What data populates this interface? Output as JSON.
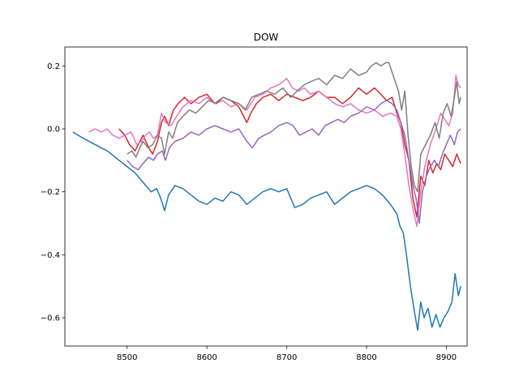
{
  "chart_data": {
    "type": "line",
    "title": "DOW",
    "xlabel": "",
    "ylabel": "",
    "xlim": [
      8422,
      8926
    ],
    "ylim": [
      -0.69,
      0.26
    ],
    "xticks": [
      8500,
      8600,
      8700,
      8800,
      8900
    ],
    "yticks": [
      -0.6,
      -0.4,
      -0.2,
      0.0,
      0.2
    ],
    "ytick_labels": [
      "−0.6",
      "−0.4",
      "−0.2",
      "0.0",
      "0.2"
    ],
    "grid": false,
    "legend": "none",
    "series": [
      {
        "color": "#1f77b4",
        "points": [
          [
            8432,
            -0.01
          ],
          [
            8445,
            -0.03
          ],
          [
            8460,
            -0.05
          ],
          [
            8475,
            -0.07
          ],
          [
            8490,
            -0.1
          ],
          [
            8500,
            -0.12
          ],
          [
            8510,
            -0.14
          ],
          [
            8520,
            -0.17
          ],
          [
            8530,
            -0.2
          ],
          [
            8537,
            -0.19
          ],
          [
            8542,
            -0.22
          ],
          [
            8547,
            -0.26
          ],
          [
            8552,
            -0.21
          ],
          [
            8560,
            -0.18
          ],
          [
            8570,
            -0.19
          ],
          [
            8580,
            -0.21
          ],
          [
            8590,
            -0.23
          ],
          [
            8600,
            -0.24
          ],
          [
            8610,
            -0.22
          ],
          [
            8620,
            -0.23
          ],
          [
            8630,
            -0.2
          ],
          [
            8640,
            -0.21
          ],
          [
            8650,
            -0.24
          ],
          [
            8660,
            -0.22
          ],
          [
            8670,
            -0.2
          ],
          [
            8680,
            -0.19
          ],
          [
            8690,
            -0.2
          ],
          [
            8700,
            -0.19
          ],
          [
            8705,
            -0.22
          ],
          [
            8710,
            -0.25
          ],
          [
            8720,
            -0.24
          ],
          [
            8730,
            -0.22
          ],
          [
            8740,
            -0.21
          ],
          [
            8750,
            -0.2
          ],
          [
            8760,
            -0.24
          ],
          [
            8770,
            -0.22
          ],
          [
            8780,
            -0.2
          ],
          [
            8790,
            -0.19
          ],
          [
            8800,
            -0.18
          ],
          [
            8810,
            -0.19
          ],
          [
            8820,
            -0.21
          ],
          [
            8830,
            -0.24
          ],
          [
            8838,
            -0.27
          ],
          [
            8842,
            -0.31
          ],
          [
            8846,
            -0.33
          ],
          [
            8850,
            -0.4
          ],
          [
            8855,
            -0.5
          ],
          [
            8860,
            -0.58
          ],
          [
            8864,
            -0.64
          ],
          [
            8868,
            -0.55
          ],
          [
            8872,
            -0.6
          ],
          [
            8877,
            -0.57
          ],
          [
            8882,
            -0.63
          ],
          [
            8887,
            -0.59
          ],
          [
            8892,
            -0.63
          ],
          [
            8897,
            -0.6
          ],
          [
            8902,
            -0.58
          ],
          [
            8907,
            -0.55
          ],
          [
            8911,
            -0.46
          ],
          [
            8915,
            -0.53
          ],
          [
            8918,
            -0.5
          ]
        ]
      },
      {
        "color": "#d62728",
        "points": [
          [
            8490,
            0.0
          ],
          [
            8497,
            -0.02
          ],
          [
            8503,
            -0.05
          ],
          [
            8510,
            -0.07
          ],
          [
            8516,
            -0.04
          ],
          [
            8520,
            -0.02
          ],
          [
            8527,
            -0.06
          ],
          [
            8532,
            -0.08
          ],
          [
            8538,
            -0.04
          ],
          [
            8543,
            0.02
          ],
          [
            8547,
            0.04
          ],
          [
            8552,
            0.01
          ],
          [
            8558,
            0.06
          ],
          [
            8564,
            0.08
          ],
          [
            8572,
            0.1
          ],
          [
            8580,
            0.08
          ],
          [
            8590,
            0.1
          ],
          [
            8600,
            0.11
          ],
          [
            8610,
            0.08
          ],
          [
            8620,
            0.1
          ],
          [
            8630,
            0.09
          ],
          [
            8640,
            0.07
          ],
          [
            8650,
            0.02
          ],
          [
            8655,
            0.05
          ],
          [
            8662,
            0.08
          ],
          [
            8670,
            0.1
          ],
          [
            8680,
            0.11
          ],
          [
            8690,
            0.09
          ],
          [
            8700,
            0.11
          ],
          [
            8710,
            0.1
          ],
          [
            8720,
            0.09
          ],
          [
            8730,
            0.1
          ],
          [
            8740,
            0.12
          ],
          [
            8750,
            0.1
          ],
          [
            8760,
            0.1
          ],
          [
            8770,
            0.08
          ],
          [
            8780,
            0.1
          ],
          [
            8790,
            0.13
          ],
          [
            8800,
            0.11
          ],
          [
            8810,
            0.13
          ],
          [
            8818,
            0.11
          ],
          [
            8825,
            0.09
          ],
          [
            8832,
            0.1
          ],
          [
            8838,
            0.05
          ],
          [
            8843,
            0.02
          ],
          [
            8848,
            -0.05
          ],
          [
            8853,
            -0.1
          ],
          [
            8858,
            -0.22
          ],
          [
            8863,
            -0.28
          ],
          [
            8868,
            -0.15
          ],
          [
            8873,
            -0.18
          ],
          [
            8878,
            -0.1
          ],
          [
            8883,
            -0.14
          ],
          [
            8888,
            -0.11
          ],
          [
            8893,
            -0.13
          ],
          [
            8898,
            -0.08
          ],
          [
            8903,
            -0.1
          ],
          [
            8908,
            -0.12
          ],
          [
            8913,
            -0.08
          ],
          [
            8918,
            -0.11
          ]
        ]
      },
      {
        "color": "#e377c2",
        "points": [
          [
            8452,
            -0.01
          ],
          [
            8460,
            0.0
          ],
          [
            8468,
            -0.01
          ],
          [
            8475,
            0.0
          ],
          [
            8482,
            -0.02
          ],
          [
            8490,
            -0.03
          ],
          [
            8497,
            -0.02
          ],
          [
            8505,
            -0.01
          ],
          [
            8512,
            -0.05
          ],
          [
            8518,
            -0.04
          ],
          [
            8523,
            -0.02
          ],
          [
            8528,
            -0.01
          ],
          [
            8533,
            -0.03
          ],
          [
            8538,
            -0.02
          ],
          [
            8543,
            0.05
          ],
          [
            8548,
            0.02
          ],
          [
            8555,
            0.01
          ],
          [
            8562,
            0.04
          ],
          [
            8570,
            0.07
          ],
          [
            8580,
            0.09
          ],
          [
            8590,
            0.08
          ],
          [
            8600,
            0.1
          ],
          [
            8610,
            0.08
          ],
          [
            8620,
            0.09
          ],
          [
            8630,
            0.07
          ],
          [
            8640,
            0.08
          ],
          [
            8650,
            0.06
          ],
          [
            8660,
            0.1
          ],
          [
            8670,
            0.11
          ],
          [
            8680,
            0.13
          ],
          [
            8690,
            0.14
          ],
          [
            8700,
            0.16
          ],
          [
            8707,
            0.13
          ],
          [
            8715,
            0.12
          ],
          [
            8722,
            0.13
          ],
          [
            8730,
            0.11
          ],
          [
            8740,
            0.12
          ],
          [
            8750,
            0.1
          ],
          [
            8760,
            0.08
          ],
          [
            8770,
            0.07
          ],
          [
            8780,
            0.08
          ],
          [
            8790,
            0.06
          ],
          [
            8800,
            0.05
          ],
          [
            8810,
            0.06
          ],
          [
            8820,
            0.04
          ],
          [
            8830,
            0.05
          ],
          [
            8838,
            0.04
          ],
          [
            8843,
            0.0
          ],
          [
            8848,
            -0.08
          ],
          [
            8853,
            -0.18
          ],
          [
            8858,
            -0.25
          ],
          [
            8863,
            -0.31
          ],
          [
            8868,
            -0.2
          ],
          [
            8873,
            -0.12
          ],
          [
            8880,
            -0.05
          ],
          [
            8887,
            0.0
          ],
          [
            8893,
            0.05
          ],
          [
            8898,
            0.03
          ],
          [
            8903,
            0.01
          ],
          [
            8908,
            0.05
          ],
          [
            8912,
            0.17
          ],
          [
            8915,
            0.14
          ],
          [
            8918,
            0.13
          ]
        ]
      },
      {
        "color": "#7f7f7f",
        "points": [
          [
            8500,
            -0.08
          ],
          [
            8506,
            -0.07
          ],
          [
            8511,
            -0.09
          ],
          [
            8516,
            -0.06
          ],
          [
            8520,
            -0.04
          ],
          [
            8526,
            -0.06
          ],
          [
            8532,
            -0.05
          ],
          [
            8538,
            -0.02
          ],
          [
            8543,
            -0.03
          ],
          [
            8547,
            -0.08
          ],
          [
            8552,
            -0.01
          ],
          [
            8557,
            -0.03
          ],
          [
            8563,
            0.02
          ],
          [
            8570,
            0.04
          ],
          [
            8578,
            0.06
          ],
          [
            8586,
            0.05
          ],
          [
            8594,
            0.07
          ],
          [
            8602,
            0.09
          ],
          [
            8612,
            0.08
          ],
          [
            8620,
            0.1
          ],
          [
            8630,
            0.09
          ],
          [
            8640,
            0.08
          ],
          [
            8648,
            0.06
          ],
          [
            8656,
            0.1
          ],
          [
            8665,
            0.11
          ],
          [
            8675,
            0.12
          ],
          [
            8685,
            0.11
          ],
          [
            8695,
            0.13
          ],
          [
            8705,
            0.1
          ],
          [
            8713,
            0.12
          ],
          [
            8722,
            0.14
          ],
          [
            8730,
            0.15
          ],
          [
            8740,
            0.16
          ],
          [
            8750,
            0.14
          ],
          [
            8760,
            0.17
          ],
          [
            8770,
            0.16
          ],
          [
            8780,
            0.19
          ],
          [
            8790,
            0.17
          ],
          [
            8800,
            0.18
          ],
          [
            8806,
            0.2
          ],
          [
            8812,
            0.21
          ],
          [
            8818,
            0.2
          ],
          [
            8824,
            0.21
          ],
          [
            8828,
            0.21
          ],
          [
            8832,
            0.18
          ],
          [
            8836,
            0.15
          ],
          [
            8840,
            0.12
          ],
          [
            8844,
            0.06
          ],
          [
            8848,
            0.12
          ],
          [
            8852,
            -0.02
          ],
          [
            8856,
            -0.12
          ],
          [
            8860,
            -0.18
          ],
          [
            8864,
            -0.2
          ],
          [
            8868,
            -0.08
          ],
          [
            8874,
            -0.05
          ],
          [
            8880,
            -0.02
          ],
          [
            8886,
            0.02
          ],
          [
            8891,
            -0.03
          ],
          [
            8896,
            0.05
          ],
          [
            8901,
            0.08
          ],
          [
            8906,
            0.04
          ],
          [
            8910,
            0.1
          ],
          [
            8913,
            0.15
          ],
          [
            8916,
            0.08
          ],
          [
            8918,
            0.1
          ]
        ]
      },
      {
        "color": "#9467bd",
        "points": [
          [
            8500,
            -0.1
          ],
          [
            8507,
            -0.12
          ],
          [
            8514,
            -0.13
          ],
          [
            8520,
            -0.11
          ],
          [
            8527,
            -0.09
          ],
          [
            8533,
            -0.1
          ],
          [
            8538,
            -0.08
          ],
          [
            8544,
            -0.07
          ],
          [
            8548,
            -0.1
          ],
          [
            8553,
            -0.06
          ],
          [
            8560,
            -0.04
          ],
          [
            8570,
            -0.03
          ],
          [
            8580,
            -0.01
          ],
          [
            8590,
            -0.02
          ],
          [
            8600,
            0.0
          ],
          [
            8610,
            0.01
          ],
          [
            8620,
            0.0
          ],
          [
            8630,
            -0.01
          ],
          [
            8640,
            0.0
          ],
          [
            8650,
            -0.04
          ],
          [
            8657,
            -0.06
          ],
          [
            8665,
            -0.03
          ],
          [
            8672,
            -0.02
          ],
          [
            8680,
            -0.01
          ],
          [
            8690,
            0.01
          ],
          [
            8700,
            0.02
          ],
          [
            8708,
            0.01
          ],
          [
            8716,
            -0.02
          ],
          [
            8724,
            -0.01
          ],
          [
            8732,
            0.0
          ],
          [
            8740,
            -0.02
          ],
          [
            8748,
            0.01
          ],
          [
            8756,
            0.02
          ],
          [
            8764,
            0.03
          ],
          [
            8772,
            0.02
          ],
          [
            8780,
            0.04
          ],
          [
            8790,
            0.05
          ],
          [
            8800,
            0.07
          ],
          [
            8810,
            0.06
          ],
          [
            8818,
            0.08
          ],
          [
            8825,
            0.09
          ],
          [
            8832,
            0.08
          ],
          [
            8838,
            0.06
          ],
          [
            8843,
            0.02
          ],
          [
            8848,
            -0.02
          ],
          [
            8853,
            -0.1
          ],
          [
            8858,
            -0.18
          ],
          [
            8862,
            -0.22
          ],
          [
            8866,
            -0.3
          ],
          [
            8870,
            -0.2
          ],
          [
            8875,
            -0.15
          ],
          [
            8880,
            -0.12
          ],
          [
            8885,
            -0.1
          ],
          [
            8890,
            -0.12
          ],
          [
            8895,
            -0.08
          ],
          [
            8900,
            -0.05
          ],
          [
            8905,
            -0.02
          ],
          [
            8910,
            -0.05
          ],
          [
            8914,
            -0.01
          ],
          [
            8918,
            0.0
          ]
        ]
      }
    ]
  }
}
